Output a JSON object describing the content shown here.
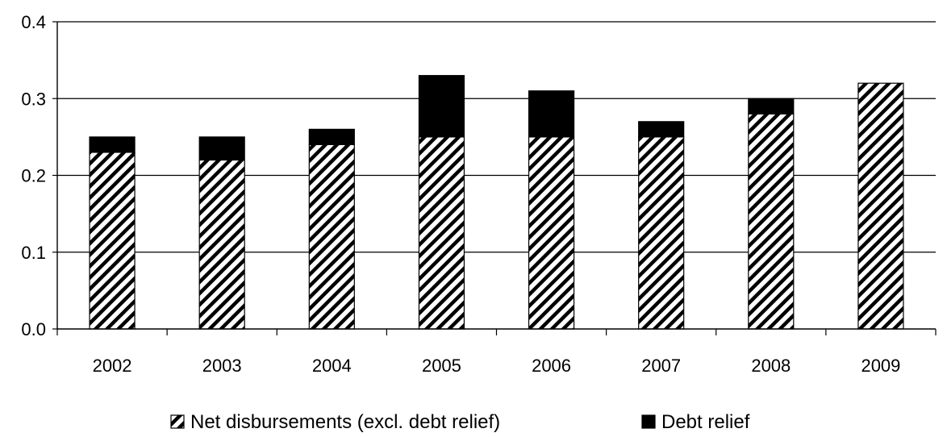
{
  "chart_data": {
    "type": "bar",
    "stacked": true,
    "title": "",
    "xlabel": "",
    "ylabel": "",
    "categories": [
      "2002",
      "2003",
      "2004",
      "2005",
      "2006",
      "2007",
      "2008",
      "2009"
    ],
    "series": [
      {
        "name": "Net disbursements (excl. debt relief)",
        "pattern": "diagonal-hatch",
        "values": [
          0.23,
          0.22,
          0.24,
          0.25,
          0.25,
          0.25,
          0.28,
          0.32
        ]
      },
      {
        "name": "Debt relief",
        "color": "#000000",
        "values": [
          0.02,
          0.03,
          0.02,
          0.08,
          0.06,
          0.02,
          0.02,
          0.0
        ]
      }
    ],
    "ylim": [
      0,
      0.4
    ],
    "yticks": [
      "0.0",
      "0.1",
      "0.2",
      "0.3",
      "0.4"
    ],
    "grid": true,
    "legend_position": "bottom"
  }
}
